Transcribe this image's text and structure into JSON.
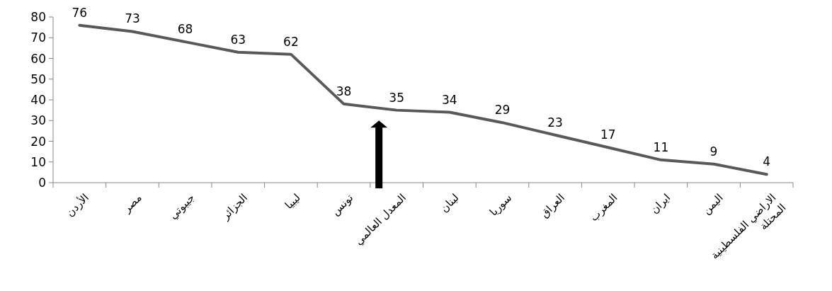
{
  "chart_data": {
    "type": "line",
    "categories": [
      "الأردن",
      "مصر",
      "جيبوتي",
      "الجزائر",
      "ليبيا",
      "تونس",
      "المعدل العالمي",
      "لبنان",
      "سوريا",
      "العراق",
      "المغرب",
      "ايران",
      "اليمن",
      "الاراضي الفلسطينية المحتلة"
    ],
    "values": [
      76,
      73,
      68,
      63,
      62,
      38,
      35,
      34,
      29,
      23,
      17,
      11,
      9,
      4
    ],
    "color": "#595959",
    "ylim": [
      0,
      80
    ],
    "yticks": [
      0,
      10,
      20,
      30,
      40,
      50,
      60,
      70,
      80
    ],
    "data_labels": true,
    "grid": false,
    "marker": "none",
    "line_style": "solid"
  }
}
